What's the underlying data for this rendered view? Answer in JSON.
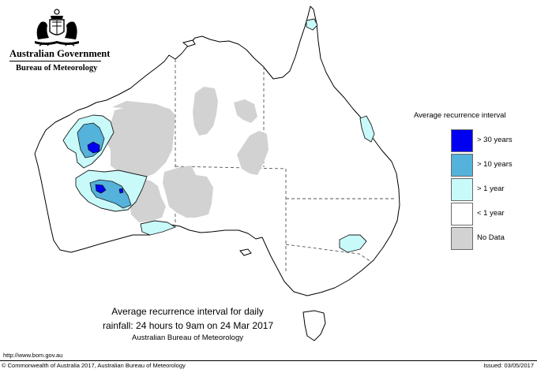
{
  "header": {
    "government": "Australian Government",
    "bureau": "Bureau of Meteorology"
  },
  "legend": {
    "title": "Average recurrence interval",
    "items": [
      {
        "label": "> 30 years",
        "color": "#0000f0"
      },
      {
        "label": "> 10 years",
        "color": "#55b2da"
      },
      {
        "label": "> 1 year",
        "color": "#c8fafa"
      },
      {
        "label": "< 1 year",
        "color": "#ffffff"
      },
      {
        "label": "No Data",
        "color": "#d2d2d2"
      }
    ]
  },
  "caption": {
    "line1": "Average recurrence interval for daily",
    "line2": "rainfall: 24 hours to 9am on 24 Mar 2017",
    "line3": "Australian Bureau of Meteorology"
  },
  "footer": {
    "url": "http://www.bom.gov.au",
    "copyright": "© Commonwealth of Australia 2017, Australian Bureau of Meteorology",
    "issued": "Issued: 03/05/2017"
  }
}
